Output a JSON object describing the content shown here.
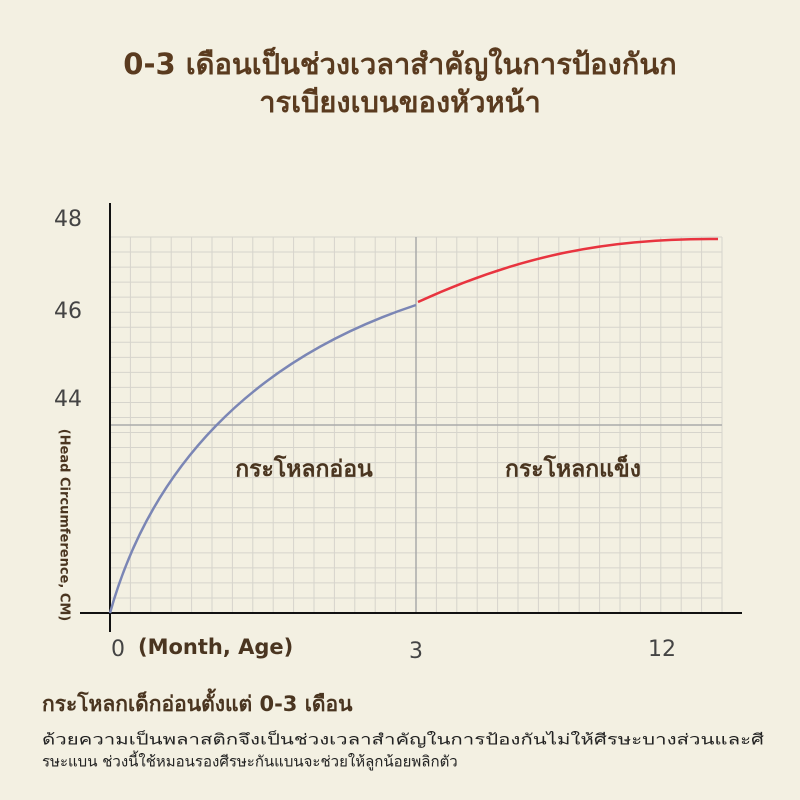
{
  "title": {
    "line1": "0-3 เดือนเป็นช่วงเวลาสำคัญในการป้องกันก",
    "line2": "ารเบียงเบนของหัวหน้า"
  },
  "axis": {
    "y_labels": [
      "48",
      "46",
      "44"
    ],
    "y_title": "(Head Circumference, CM)",
    "x_labels": [
      "0",
      "3",
      "12"
    ],
    "x_title": "(Month, Age)"
  },
  "regions": [
    "กระโหลกอ่อน",
    "กระโหลกแข็ง"
  ],
  "footer": {
    "heading": "กระโหลกเด็กอ่อนตั้งแต่ 0-3 เดือน",
    "text_line1": "ด้วยความเป็นพลาสติกจึงเป็นช่วงเวลาสำคัญในการป้องกันไม่ให้ศีรษะบางส่วนและศี",
    "text_line2": "รษะแบน ช่วงนี้ใช้หมอนรองศีรษะกันแบนจะช่วยให้ลูกน้อยพลิกตัว"
  }
}
